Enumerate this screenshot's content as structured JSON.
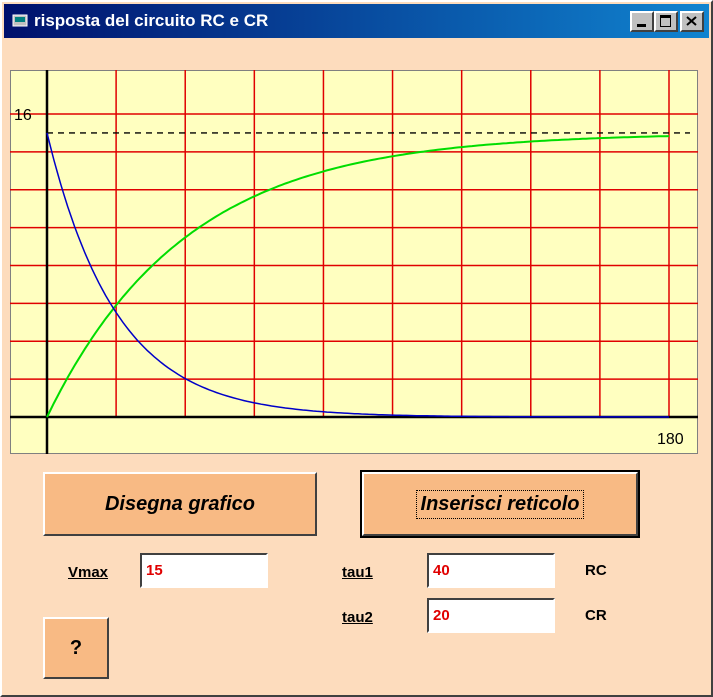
{
  "window": {
    "title": "risposta del circuito RC e CR"
  },
  "plot": {
    "xlim": [
      0,
      180
    ],
    "ylim": [
      0,
      16
    ],
    "xticks": [
      180
    ],
    "yticks": [
      16
    ],
    "xgrid": [
      20,
      40,
      60,
      80,
      100,
      120,
      140,
      160,
      180
    ],
    "ygrid": [
      2,
      4,
      6,
      8,
      10,
      12,
      14,
      16
    ],
    "rc_color": "#00dd00",
    "cr_color": "#0000c8",
    "grid_color": "#e00000"
  },
  "buttons": [
    "Disegna grafico",
    "Inserisci reticolo",
    "?"
  ],
  "fields": [
    {
      "label": "Vmax",
      "value": "15"
    },
    {
      "label": "tau1",
      "value": "40",
      "unit": "RC"
    },
    {
      "label": "tau2",
      "value": "20",
      "unit": "CR"
    }
  ]
}
